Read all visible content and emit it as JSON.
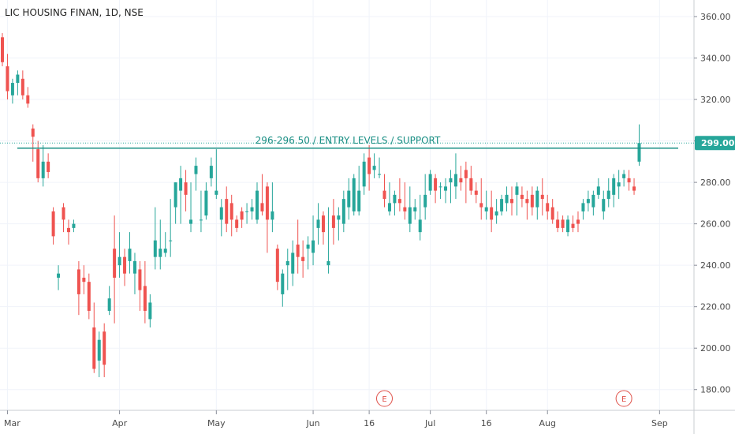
{
  "chart_data": {
    "type": "candlestick",
    "title": "LIC HOUSING FINAN, 1D, NSE",
    "ylim": [
      170,
      368
    ],
    "y_ticks": [
      180,
      200,
      220,
      240,
      260,
      280,
      300,
      320,
      340,
      360
    ],
    "y_tick_labels": [
      "180.00",
      "200.00",
      "220.00",
      "240.00",
      "260.00",
      "280.00",
      "300.00",
      "320.00",
      "340.00",
      "360.00"
    ],
    "x_ticks": [
      {
        "label": "Mar",
        "index": 1
      },
      {
        "label": "Apr",
        "index": 23
      },
      {
        "label": "May",
        "index": 42
      },
      {
        "label": "Jun",
        "index": 61
      },
      {
        "label": "16",
        "index": 72
      },
      {
        "label": "Jul",
        "index": 84
      },
      {
        "label": "16",
        "index": 95
      },
      {
        "label": "Aug",
        "index": 107
      },
      {
        "label": "Sep",
        "index": 129
      }
    ],
    "last_price": 299.0,
    "last_price_label": "299.00",
    "support_level": 296.5,
    "support_annotation": "296-296.50 / ENTRY LEVELS / SUPPORT",
    "earnings_markers": [
      {
        "label": "E",
        "index": 75
      },
      {
        "label": "E",
        "index": 122
      }
    ],
    "up_color": "#26a69a",
    "down_color": "#ef5350",
    "candles": [
      [
        350,
        352,
        336,
        338
      ],
      [
        336,
        342,
        320,
        324
      ],
      [
        322,
        330,
        318,
        328
      ],
      [
        328,
        334,
        322,
        332
      ],
      [
        330,
        334,
        320,
        322
      ],
      [
        322,
        326,
        316,
        318
      ],
      [
        306,
        308,
        290,
        302
      ],
      [
        296,
        300,
        280,
        282
      ],
      [
        282,
        298,
        278,
        290
      ],
      [
        290,
        294,
        282,
        285
      ],
      [
        266,
        268,
        250,
        254
      ],
      [
        234,
        240,
        228,
        236
      ],
      [
        268,
        270,
        256,
        262
      ],
      [
        258,
        262,
        250,
        256
      ],
      [
        258,
        262,
        256,
        260
      ],
      [
        238,
        242,
        216,
        226
      ],
      [
        234,
        240,
        226,
        232
      ],
      [
        232,
        236,
        214,
        218
      ],
      [
        210,
        222,
        188,
        190
      ],
      [
        194,
        208,
        186,
        204
      ],
      [
        208,
        212,
        186,
        192
      ],
      [
        218,
        230,
        216,
        224
      ],
      [
        248,
        264,
        212,
        234
      ],
      [
        240,
        256,
        234,
        244
      ],
      [
        244,
        248,
        230,
        236
      ],
      [
        242,
        256,
        236,
        248
      ],
      [
        236,
        246,
        226,
        242
      ],
      [
        238,
        242,
        218,
        228
      ],
      [
        230,
        242,
        212,
        218
      ],
      [
        214,
        226,
        210,
        222
      ],
      [
        244,
        268,
        238,
        252
      ],
      [
        244,
        262,
        238,
        248
      ],
      [
        246,
        256,
        244,
        248
      ],
      [
        252,
        272,
        244,
        252
      ],
      [
        268,
        280,
        260,
        280
      ],
      [
        276,
        288,
        260,
        282
      ],
      [
        280,
        286,
        266,
        274
      ],
      [
        260,
        280,
        256,
        262
      ],
      [
        284,
        292,
        276,
        288
      ],
      [
        262,
        276,
        256,
        262
      ],
      [
        264,
        280,
        262,
        276
      ],
      [
        282,
        292,
        278,
        288
      ],
      [
        274,
        296,
        272,
        276
      ],
      [
        262,
        272,
        254,
        268
      ],
      [
        272,
        278,
        256,
        260
      ],
      [
        270,
        274,
        254,
        262
      ],
      [
        262,
        264,
        256,
        258
      ],
      [
        266,
        268,
        258,
        262
      ],
      [
        266,
        270,
        260,
        266
      ],
      [
        266,
        272,
        262,
        268
      ],
      [
        262,
        280,
        260,
        276
      ],
      [
        270,
        284,
        264,
        266
      ],
      [
        278,
        280,
        246,
        262
      ],
      [
        262,
        280,
        256,
        266
      ],
      [
        248,
        250,
        228,
        232
      ],
      [
        226,
        238,
        220,
        236
      ],
      [
        240,
        248,
        228,
        242
      ],
      [
        236,
        252,
        230,
        246
      ],
      [
        250,
        262,
        236,
        244
      ],
      [
        244,
        252,
        234,
        242
      ],
      [
        248,
        254,
        238,
        250
      ],
      [
        246,
        264,
        240,
        252
      ],
      [
        258,
        270,
        250,
        262
      ],
      [
        264,
        266,
        250,
        256
      ],
      [
        240,
        268,
        236,
        242
      ],
      [
        264,
        272,
        250,
        258
      ],
      [
        262,
        268,
        252,
        264
      ],
      [
        260,
        276,
        256,
        272
      ],
      [
        268,
        282,
        262,
        276
      ],
      [
        266,
        284,
        264,
        282
      ],
      [
        266,
        288,
        264,
        276
      ],
      [
        278,
        294,
        274,
        290
      ],
      [
        292,
        298,
        276,
        284
      ],
      [
        286,
        294,
        282,
        288
      ],
      [
        284,
        292,
        282,
        284
      ],
      [
        276,
        284,
        268,
        272
      ],
      [
        266,
        280,
        264,
        270
      ],
      [
        270,
        276,
        264,
        274
      ],
      [
        272,
        282,
        266,
        270
      ],
      [
        268,
        280,
        262,
        266
      ],
      [
        260,
        278,
        256,
        268
      ],
      [
        266,
        272,
        262,
        268
      ],
      [
        256,
        274,
        252,
        262
      ],
      [
        268,
        284,
        262,
        274
      ],
      [
        276,
        286,
        274,
        284
      ],
      [
        282,
        284,
        270,
        276
      ],
      [
        278,
        280,
        272,
        278
      ],
      [
        276,
        282,
        270,
        278
      ],
      [
        280,
        286,
        270,
        282
      ],
      [
        278,
        294,
        272,
        284
      ],
      [
        282,
        288,
        276,
        280
      ],
      [
        286,
        290,
        270,
        282
      ],
      [
        282,
        288,
        274,
        276
      ],
      [
        276,
        280,
        270,
        274
      ],
      [
        270,
        282,
        262,
        268
      ],
      [
        266,
        276,
        262,
        268
      ],
      [
        268,
        276,
        256,
        262
      ],
      [
        264,
        272,
        260,
        266
      ],
      [
        266,
        274,
        264,
        272
      ],
      [
        270,
        278,
        266,
        274
      ],
      [
        272,
        278,
        264,
        270
      ],
      [
        274,
        280,
        264,
        278
      ],
      [
        274,
        278,
        268,
        272
      ],
      [
        272,
        276,
        262,
        270
      ],
      [
        274,
        278,
        264,
        268
      ],
      [
        268,
        278,
        262,
        276
      ],
      [
        274,
        282,
        264,
        272
      ],
      [
        270,
        274,
        262,
        266
      ],
      [
        268,
        272,
        260,
        262
      ],
      [
        262,
        266,
        256,
        258
      ],
      [
        262,
        264,
        256,
        258
      ],
      [
        256,
        264,
        254,
        262
      ],
      [
        260,
        264,
        256,
        258
      ],
      [
        262,
        266,
        256,
        260
      ],
      [
        266,
        272,
        262,
        270
      ],
      [
        270,
        276,
        266,
        272
      ],
      [
        268,
        276,
        264,
        274
      ],
      [
        274,
        282,
        272,
        278
      ],
      [
        266,
        276,
        262,
        272
      ],
      [
        272,
        282,
        268,
        276
      ],
      [
        274,
        284,
        268,
        282
      ],
      [
        278,
        286,
        272,
        280
      ],
      [
        282,
        286,
        278,
        284
      ],
      [
        282,
        286,
        276,
        280
      ],
      [
        278,
        282,
        274,
        276
      ],
      [
        290,
        308,
        288,
        299
      ]
    ]
  }
}
